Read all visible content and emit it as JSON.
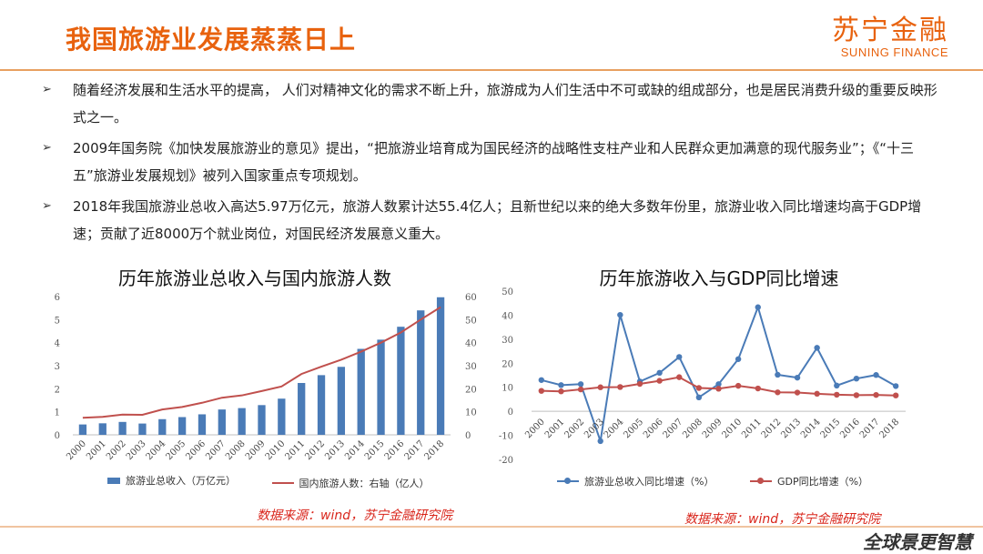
{
  "header": {
    "title": "我国旅游业发展蒸蒸日上",
    "logo_cn": "苏宁金融",
    "logo_en": "SUNING FINANCE"
  },
  "bullets": [
    "随着经济发展和生活水平的提高， 人们对精神文化的需求不断上升，旅游成为人们生活中不可或缺的组成部分，也是居民消费升级的重要反映形式之一。",
    "2009年国务院《加快发展旅游业的意见》提出，“把旅游业培育成为国民经济的战略性支柱产业和人民群众更加满意的现代服务业”；《“十三五”旅游业发展规划》被列入国家重点专项规划。",
    "2018年我国旅游业总收入高达5.97万亿元，旅游人数累计达55.4亿人；且新世纪以来的绝大多数年份里，旅游业收入同比增速均高于GDP增速；贡献了近8000万个就业岗位，对国民经济发展意义重大。"
  ],
  "chart_data": [
    {
      "type": "bar",
      "title": "历年旅游业总收入与国内旅游人数",
      "categories": [
        "2000",
        "2001",
        "2002",
        "2003",
        "2004",
        "2005",
        "2006",
        "2007",
        "2008",
        "2009",
        "2010",
        "2011",
        "2012",
        "2013",
        "2014",
        "2015",
        "2016",
        "2017",
        "2018"
      ],
      "series": [
        {
          "name": "旅游业总收入（万亿元）",
          "type": "bar",
          "axis": "left",
          "color": "#4a7bb7",
          "values": [
            0.45,
            0.5,
            0.56,
            0.49,
            0.68,
            0.77,
            0.89,
            1.1,
            1.16,
            1.29,
            1.57,
            2.25,
            2.59,
            2.95,
            3.73,
            4.13,
            4.69,
            5.4,
            5.97
          ]
        },
        {
          "name": "国内旅游人数：右轴（亿人）",
          "type": "line",
          "axis": "right",
          "color": "#c0504d",
          "values": [
            7.4,
            7.8,
            8.8,
            8.7,
            11.0,
            12.1,
            13.9,
            16.1,
            17.1,
            19.0,
            21.0,
            26.4,
            29.6,
            32.6,
            36.1,
            40.0,
            44.4,
            50.0,
            55.4
          ]
        }
      ],
      "ylim_left": [
        0,
        6
      ],
      "yticks_left": [
        "0",
        "1",
        "2",
        "3",
        "4",
        "5",
        "6"
      ],
      "ylim_right": [
        0,
        60
      ],
      "yticks_right": [
        "0",
        "10",
        "20",
        "30",
        "40",
        "50",
        "60"
      ],
      "legend_position": "bottom",
      "grid": false
    },
    {
      "type": "line",
      "title": "历年旅游收入与GDP同比增速",
      "categories": [
        "2000",
        "2001",
        "2002",
        "2003",
        "2004",
        "2005",
        "2006",
        "2007",
        "2008",
        "2009",
        "2010",
        "2011",
        "2012",
        "2013",
        "2014",
        "2015",
        "2016",
        "2017",
        "2018"
      ],
      "series": [
        {
          "name": "旅游业总收入同比增速（%）",
          "color": "#4a7bb7",
          "values": [
            13.0,
            10.9,
            11.3,
            -12.4,
            40.1,
            12.4,
            16.0,
            22.6,
            5.8,
            11.3,
            21.7,
            43.3,
            15.2,
            14.0,
            26.4,
            10.7,
            13.6,
            15.1,
            10.5
          ]
        },
        {
          "name": "GDP同比增速（%）",
          "color": "#c0504d",
          "values": [
            8.5,
            8.3,
            9.1,
            10.0,
            10.1,
            11.4,
            12.7,
            14.2,
            9.7,
            9.4,
            10.6,
            9.5,
            7.9,
            7.8,
            7.3,
            6.9,
            6.7,
            6.8,
            6.6
          ]
        }
      ],
      "ylim": [
        -20,
        50
      ],
      "yticks": [
        "-20",
        "-10",
        "0",
        "10",
        "20",
        "30",
        "40",
        "50"
      ],
      "legend_position": "bottom",
      "grid": false
    }
  ],
  "sources": [
    "数据来源：wind，苏宁金融研究院",
    "数据来源：wind，苏宁金融研究院"
  ],
  "watermark": "全球景更智慧",
  "colors": {
    "accent": "#e8620e",
    "bar": "#4a7bb7",
    "line_red": "#c0504d",
    "source": "#d9261c"
  }
}
